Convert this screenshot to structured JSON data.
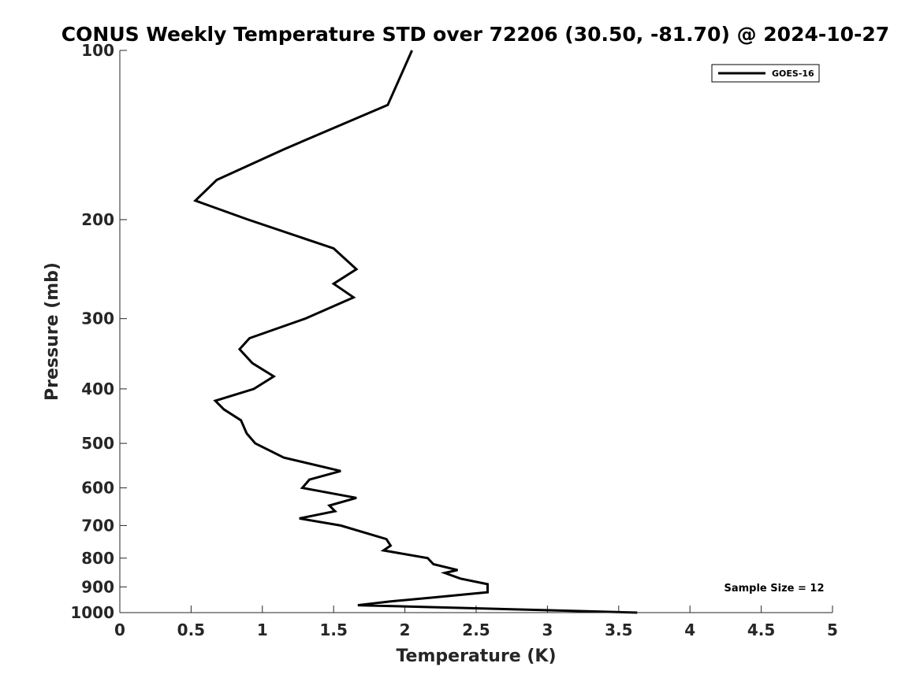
{
  "chart_data": {
    "type": "line",
    "title": "CONUS Weekly Temperature STD over 72206 (30.50, -81.70) @ 2024-10-27",
    "xlabel": "Temperature (K)",
    "ylabel": "Pressure (mb)",
    "xlim": [
      0,
      5
    ],
    "ylim": [
      100,
      1000
    ],
    "yscale": "log",
    "y_reversed": true,
    "grid": false,
    "legend_position": "top-right",
    "x_ticks": [
      "0",
      "0.5",
      "1",
      "1.5",
      "2",
      "2.5",
      "3",
      "3.5",
      "4",
      "4.5",
      "5"
    ],
    "y_ticks": [
      "100",
      "200",
      "300",
      "400",
      "500",
      "600",
      "700",
      "800",
      "900",
      "1000"
    ],
    "annotation": "Sample Size = 12",
    "series": [
      {
        "name": "GOES-16",
        "color": "#000000",
        "points": [
          [
            2.05,
            100
          ],
          [
            1.88,
            125
          ],
          [
            1.15,
            150
          ],
          [
            0.68,
            170
          ],
          [
            0.53,
            185
          ],
          [
            0.9,
            200
          ],
          [
            1.5,
            225
          ],
          [
            1.66,
            245
          ],
          [
            1.5,
            260
          ],
          [
            1.64,
            275
          ],
          [
            1.3,
            300
          ],
          [
            0.91,
            325
          ],
          [
            0.84,
            340
          ],
          [
            0.93,
            360
          ],
          [
            1.08,
            380
          ],
          [
            0.94,
            400
          ],
          [
            0.67,
            420
          ],
          [
            0.73,
            435
          ],
          [
            0.85,
            455
          ],
          [
            0.89,
            480
          ],
          [
            0.95,
            500
          ],
          [
            1.15,
            530
          ],
          [
            1.55,
            560
          ],
          [
            1.33,
            580
          ],
          [
            1.28,
            600
          ],
          [
            1.66,
            625
          ],
          [
            1.47,
            645
          ],
          [
            1.51,
            660
          ],
          [
            1.26,
            680
          ],
          [
            1.55,
            700
          ],
          [
            1.87,
            740
          ],
          [
            1.9,
            760
          ],
          [
            1.85,
            775
          ],
          [
            2.16,
            800
          ],
          [
            2.2,
            820
          ],
          [
            2.37,
            840
          ],
          [
            2.28,
            850
          ],
          [
            2.39,
            870
          ],
          [
            2.58,
            890
          ],
          [
            2.58,
            920
          ],
          [
            2.2,
            940
          ],
          [
            1.9,
            955
          ],
          [
            1.67,
            970
          ],
          [
            3.63,
            1000
          ]
        ]
      }
    ]
  }
}
